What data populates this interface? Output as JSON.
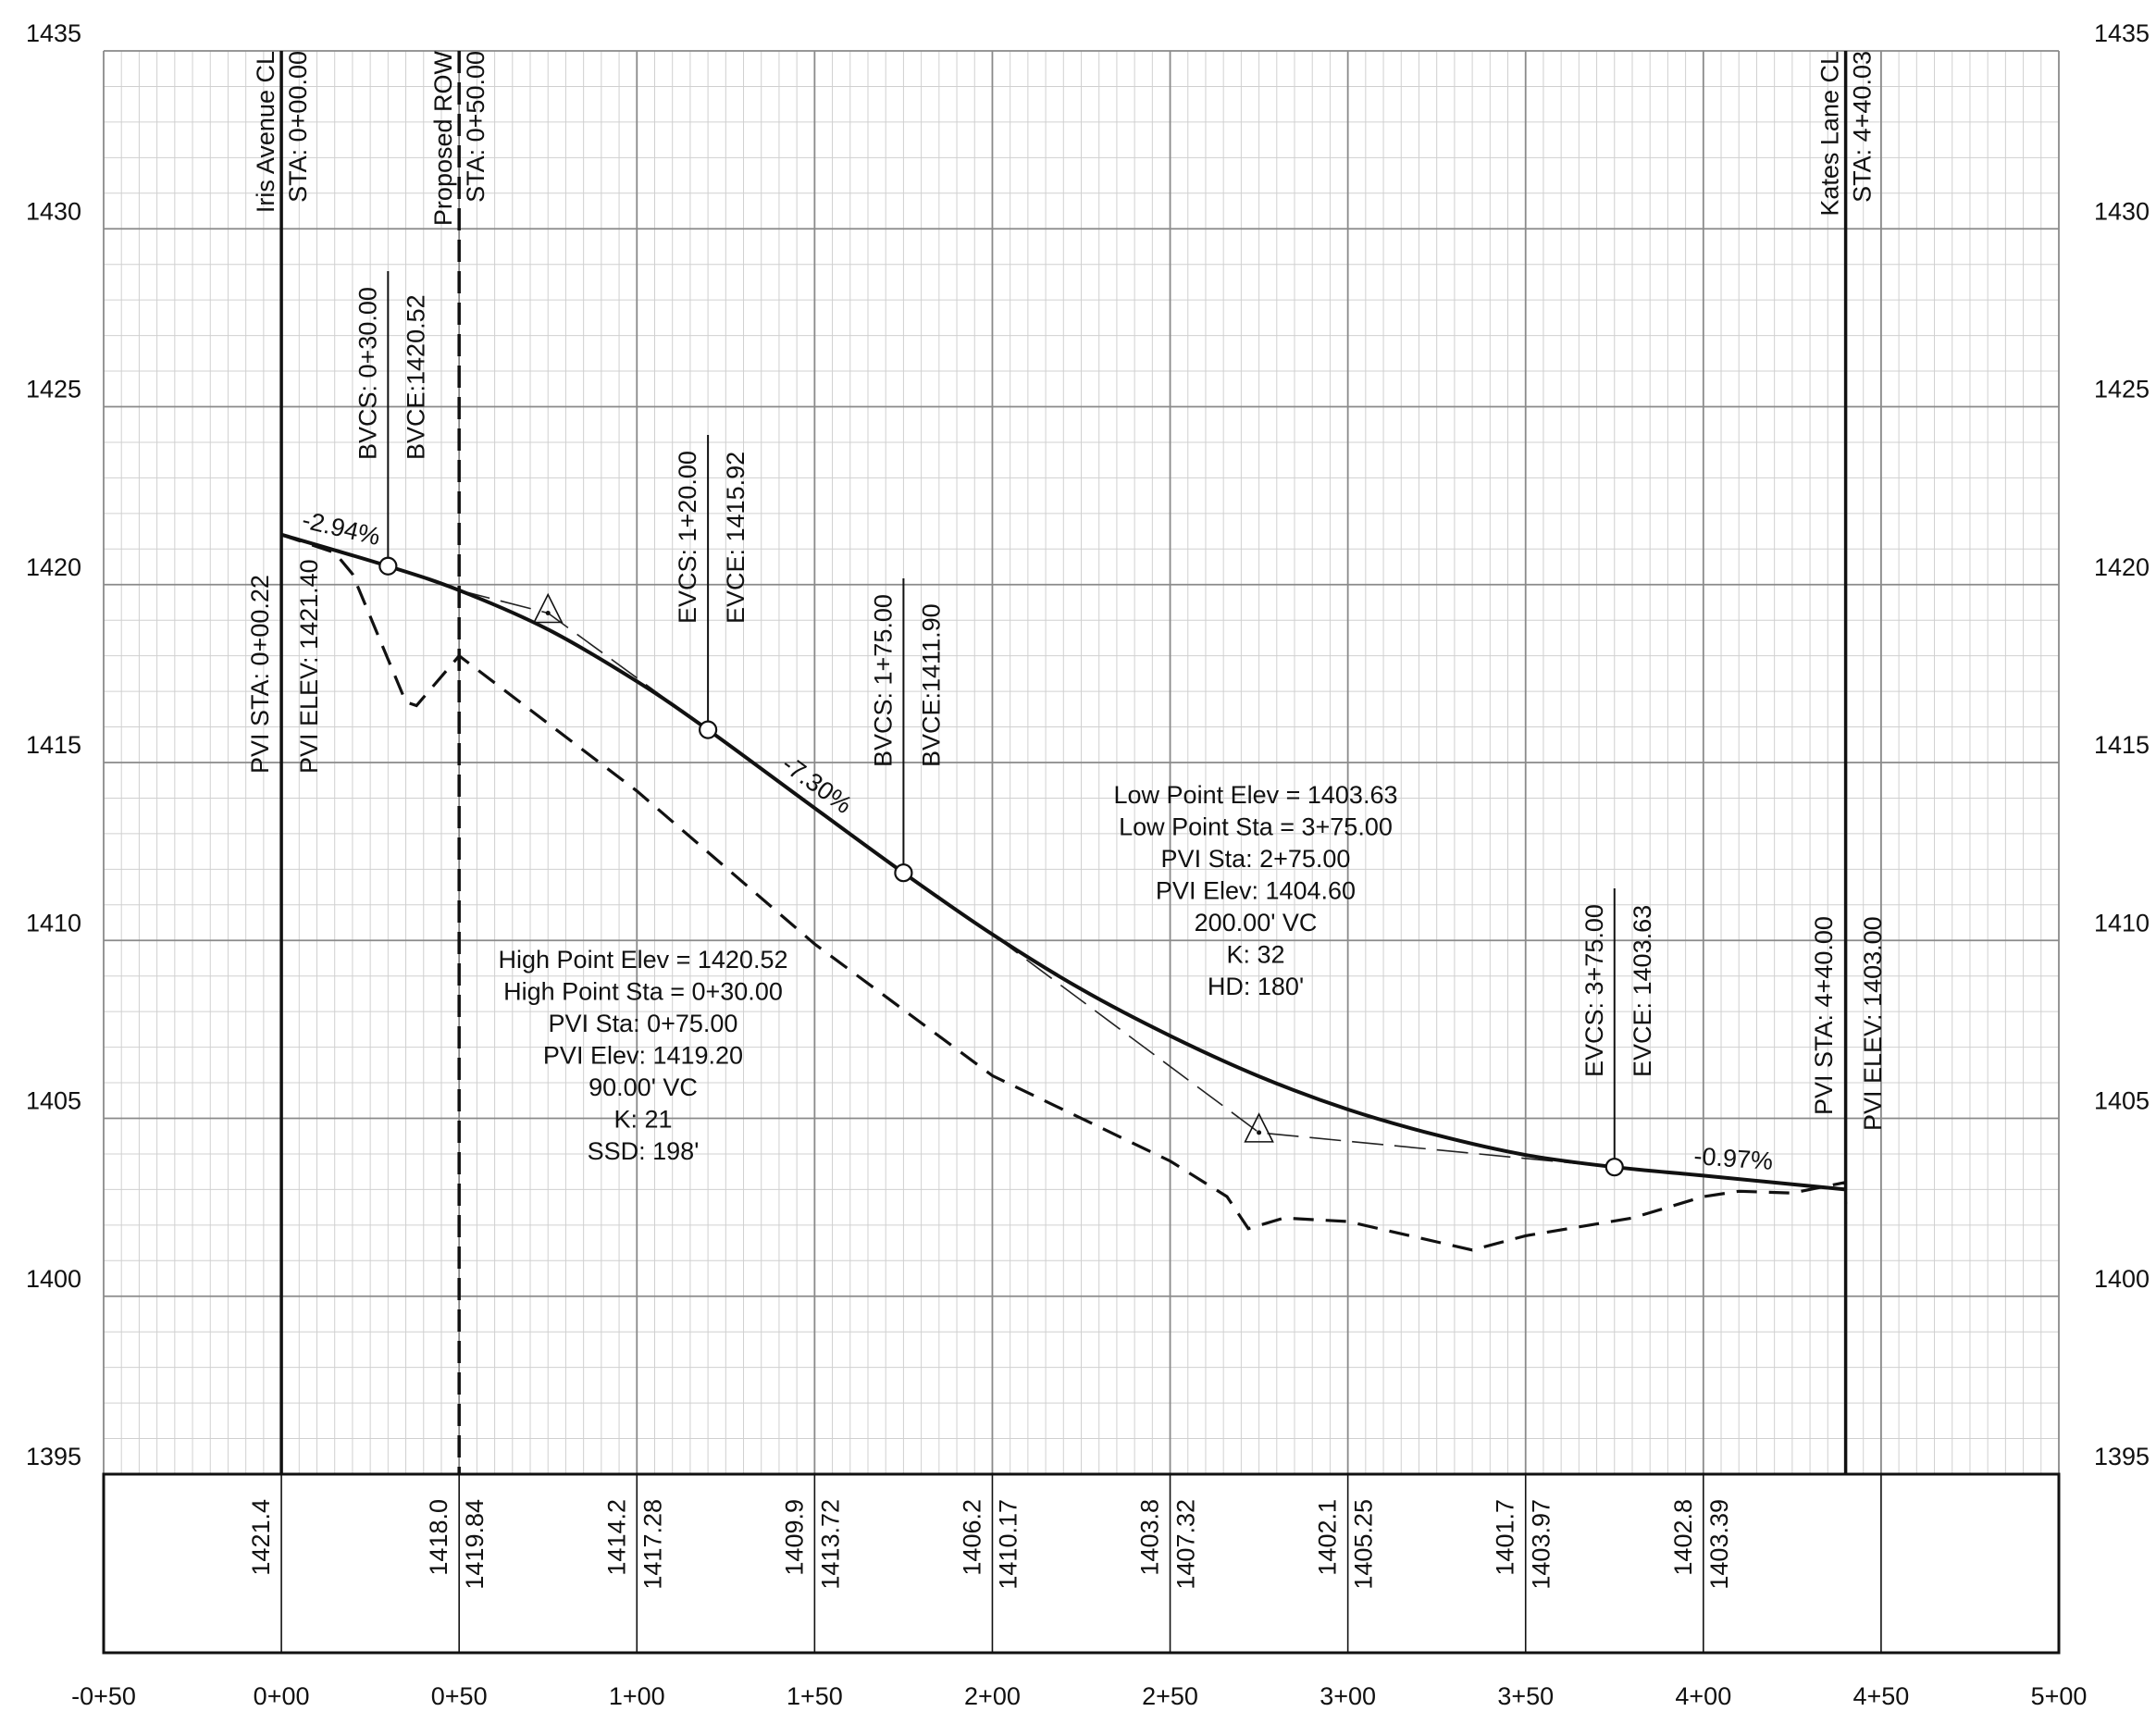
{
  "chart_data": {
    "type": "line",
    "title": "",
    "xlabel": "",
    "ylabel": "",
    "x_range": [
      -50,
      500
    ],
    "y_range": [
      1395,
      1435
    ],
    "grid": true,
    "y_tick_labels": [
      "1435",
      "1430",
      "1425",
      "1420",
      "1415",
      "1410",
      "1405",
      "1400",
      "1395"
    ],
    "x_tick_labels": [
      "-0+50",
      "0+00",
      "0+50",
      "1+00",
      "1+50",
      "2+00",
      "2+50",
      "3+00",
      "3+50",
      "4+00",
      "4+50",
      "5+00"
    ],
    "existing_ground_profile": [
      [
        0,
        1421.4
      ],
      [
        15,
        1420.9
      ],
      [
        20,
        1420.3
      ],
      [
        35,
        1416.7
      ],
      [
        38,
        1416.6
      ],
      [
        50,
        1418.0
      ],
      [
        100,
        1414.2
      ],
      [
        150,
        1409.9
      ],
      [
        200,
        1406.2
      ],
      [
        250,
        1403.8
      ],
      [
        266,
        1402.8
      ],
      [
        272,
        1401.9
      ],
      [
        282,
        1402.2
      ],
      [
        300,
        1402.1
      ],
      [
        335,
        1401.3
      ],
      [
        350,
        1401.7
      ],
      [
        380,
        1402.2
      ],
      [
        400,
        1402.8
      ],
      [
        410,
        1402.95
      ],
      [
        425,
        1402.9
      ],
      [
        440,
        1403.2
      ],
      [
        440.03,
        1402.6
      ]
    ],
    "proposed_profile": [
      [
        0.22,
        1421.4
      ],
      [
        30,
        1420.52
      ],
      [
        50,
        1419.84
      ],
      [
        75,
        1418.74
      ],
      [
        100,
        1417.28
      ],
      [
        120,
        1415.92
      ],
      [
        150,
        1413.72
      ],
      [
        175,
        1411.9
      ],
      [
        200,
        1410.17
      ],
      [
        225,
        1408.63
      ],
      [
        250,
        1407.32
      ],
      [
        275,
        1406.18
      ],
      [
        300,
        1405.25
      ],
      [
        325,
        1404.53
      ],
      [
        350,
        1403.97
      ],
      [
        375,
        1403.63
      ],
      [
        400,
        1403.39
      ],
      [
        440,
        1403.0
      ]
    ],
    "tangent_lines": [
      [
        [
          50,
          1419.84
        ],
        [
          75,
          1419.2
        ],
        [
          120,
          1415.92
        ]
      ],
      [
        [
          200,
          1410.17
        ],
        [
          275,
          1404.6
        ],
        [
          375,
          1403.63
        ]
      ]
    ],
    "pvi_markers": [
      [
        75,
        1419.2
      ],
      [
        275,
        1404.6
      ]
    ],
    "curve_points": [
      [
        30,
        1420.52
      ],
      [
        120,
        1415.92
      ],
      [
        175,
        1411.9
      ],
      [
        375,
        1403.63
      ]
    ],
    "vertical_lines": [
      {
        "x": 0,
        "style": "solid",
        "labels": [
          "Iris Avenue CL",
          "STA: 0+00.00"
        ]
      },
      {
        "x": 50,
        "style": "dashed",
        "labels": [
          "Proposed ROW",
          "STA: 0+50.00"
        ]
      },
      {
        "x": 440.03,
        "style": "solid",
        "labels": [
          "Kates Lane CL",
          "STA: 4+40.03"
        ]
      }
    ],
    "grades": [
      "-2.94%",
      "-7.30%",
      "-0.97%"
    ],
    "annotations": {
      "bvcs_1": [
        "BVCS: 0+30.00",
        "BVCE:1420.52"
      ],
      "evcs_1": [
        "EVCS: 1+20.00",
        "EVCE: 1415.92"
      ],
      "bvcs_2": [
        "BVCS: 1+75.00",
        "BVCE:1411.90"
      ],
      "evcs_2": [
        "EVCS: 3+75.00",
        "EVCE: 1403.63"
      ],
      "pvi_start": [
        "PVI STA: 0+00.22",
        "PVI ELEV: 1421.40"
      ],
      "pvi_end": [
        "PVI STA: 4+40.00",
        "PVI ELEV: 1403.00"
      ],
      "crest_curve": [
        "High Point Elev = 1420.52",
        "High Point Sta = 0+30.00",
        "PVI Sta: 0+75.00",
        "PVI Elev: 1419.20",
        "90.00' VC",
        "K: 21",
        "SSD: 198'"
      ],
      "sag_curve": [
        "Low Point Elev = 1403.63",
        "Low Point Sta = 3+75.00",
        "PVI Sta: 2+75.00",
        "PVI Elev: 1404.60",
        "200.00' VC",
        "K: 32",
        "HD: 180'"
      ]
    },
    "elevation_table": [
      {
        "x": 0,
        "existing": "1421.4",
        "proposed": ""
      },
      {
        "x": 50,
        "existing": "1418.0",
        "proposed": "1419.84"
      },
      {
        "x": 100,
        "existing": "1414.2",
        "proposed": "1417.28"
      },
      {
        "x": 150,
        "existing": "1409.9",
        "proposed": "1413.72"
      },
      {
        "x": 200,
        "existing": "1406.2",
        "proposed": "1410.17"
      },
      {
        "x": 250,
        "existing": "1403.8",
        "proposed": "1407.32"
      },
      {
        "x": 300,
        "existing": "1402.1",
        "proposed": "1405.25"
      },
      {
        "x": 350,
        "existing": "1401.7",
        "proposed": "1403.97"
      },
      {
        "x": 400,
        "existing": "1402.8",
        "proposed": "1403.39"
      }
    ]
  }
}
